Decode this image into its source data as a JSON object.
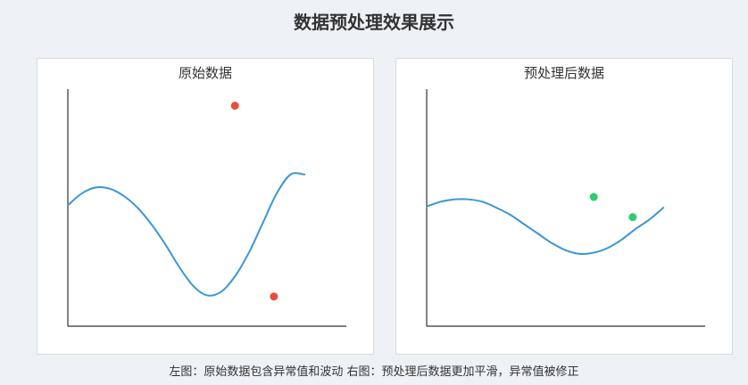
{
  "title": "数据预处理效果展示",
  "caption": "左图：原始数据包含异常值和波动 右图：预处理后数据更加平滑，异常值被修正",
  "colors": {
    "curve": "#3b97d3",
    "outlier": "#e74c3c",
    "corrected": "#2ecc71",
    "axis": "#333333"
  },
  "chart_data": [
    {
      "type": "line",
      "title": "原始数据",
      "xlim": [
        0,
        10
      ],
      "ylim": [
        0,
        10
      ],
      "series": [
        {
          "kind": "line",
          "x": [
            0,
            0.5,
            1,
            1.5,
            2,
            2.5,
            3,
            3.5,
            4,
            4.5,
            5,
            5.5,
            6,
            6.5,
            7,
            7.5,
            8,
            8.5
          ],
          "y": [
            5.1,
            5.6,
            5.85,
            5.8,
            5.5,
            5.0,
            4.3,
            3.45,
            2.5,
            1.7,
            1.3,
            1.45,
            2.1,
            3.1,
            4.35,
            5.6,
            6.4,
            6.4
          ]
        },
        {
          "kind": "scatter",
          "x": [
            6.0,
            7.4
          ],
          "y": [
            9.3,
            1.25
          ]
        }
      ]
    },
    {
      "type": "line",
      "title": "预处理后数据",
      "xlim": [
        0,
        10
      ],
      "ylim": [
        0,
        10
      ],
      "series": [
        {
          "kind": "line",
          "x": [
            0,
            0.5,
            1,
            1.5,
            2,
            2.5,
            3,
            3.5,
            4,
            4.5,
            5,
            5.5,
            6,
            6.5,
            7,
            7.5,
            8,
            8.5
          ],
          "y": [
            5.05,
            5.25,
            5.35,
            5.35,
            5.25,
            5.0,
            4.7,
            4.3,
            3.9,
            3.5,
            3.2,
            3.05,
            3.1,
            3.3,
            3.65,
            4.1,
            4.5,
            5.0
          ]
        },
        {
          "kind": "scatter",
          "x": [
            6.0,
            7.4
          ],
          "y": [
            5.45,
            4.6
          ]
        }
      ]
    }
  ]
}
